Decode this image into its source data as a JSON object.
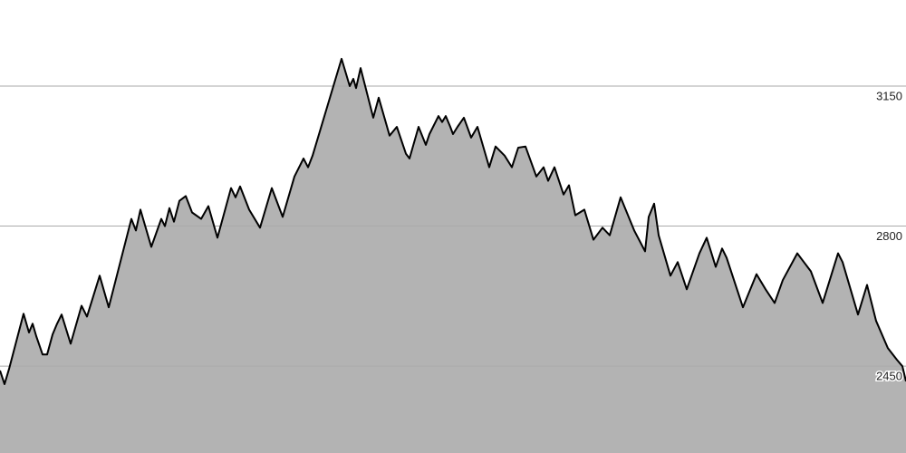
{
  "chart_data": {
    "type": "area",
    "x": [
      0,
      5,
      10,
      26,
      32,
      36,
      40,
      47,
      52,
      58,
      63,
      68,
      78,
      90,
      96,
      110,
      120,
      145,
      150,
      155,
      167,
      178,
      182,
      187,
      192,
      198,
      205,
      212,
      222,
      230,
      240,
      255,
      260,
      265,
      275,
      287,
      300,
      312,
      325,
      335,
      340,
      345,
      377,
      386,
      390,
      393,
      398,
      412,
      418,
      430,
      438,
      448,
      452,
      462,
      470,
      474,
      484,
      488,
      492,
      497,
      500,
      505,
      512,
      520,
      527,
      540,
      547,
      557,
      565,
      572,
      580,
      592,
      600,
      605,
      612,
      622,
      628,
      635,
      645,
      655,
      665,
      673,
      685,
      700,
      712,
      716,
      722,
      727,
      740,
      748,
      758,
      772,
      780,
      790,
      797,
      802,
      820,
      835,
      845,
      855,
      864,
      880,
      895,
      908,
      925,
      930,
      947,
      957,
      967,
      980,
      990,
      996,
      1000
    ],
    "values": [
      2439,
      2405,
      2443,
      2581,
      2534,
      2556,
      2525,
      2479,
      2479,
      2529,
      2556,
      2579,
      2506,
      2601,
      2574,
      2676,
      2597,
      2818,
      2789,
      2841,
      2748,
      2818,
      2800,
      2845,
      2811,
      2863,
      2875,
      2834,
      2818,
      2850,
      2771,
      2895,
      2872,
      2899,
      2841,
      2796,
      2895,
      2823,
      2924,
      2969,
      2947,
      2976,
      3218,
      3150,
      3168,
      3145,
      3195,
      3071,
      3121,
      3026,
      3048,
      2981,
      2969,
      3048,
      3003,
      3030,
      3075,
      3060,
      3075,
      3048,
      3030,
      3048,
      3071,
      3021,
      3048,
      2947,
      2999,
      2976,
      2947,
      2996,
      2999,
      2924,
      2947,
      2913,
      2947,
      2879,
      2902,
      2827,
      2841,
      2766,
      2796,
      2777,
      2872,
      2789,
      2737,
      2823,
      2856,
      2777,
      2676,
      2710,
      2642,
      2732,
      2771,
      2698,
      2744,
      2721,
      2597,
      2680,
      2642,
      2608,
      2665,
      2732,
      2687,
      2608,
      2732,
      2710,
      2579,
      2653,
      2563,
      2495,
      2466,
      2450,
      2412
    ],
    "xlim": [
      0,
      1000
    ],
    "ylim": [
      2233,
      3365
    ],
    "yticks": [
      2450,
      2800,
      3150
    ],
    "grid": true,
    "color": "#b3b3b3",
    "line_color": "#000000"
  }
}
